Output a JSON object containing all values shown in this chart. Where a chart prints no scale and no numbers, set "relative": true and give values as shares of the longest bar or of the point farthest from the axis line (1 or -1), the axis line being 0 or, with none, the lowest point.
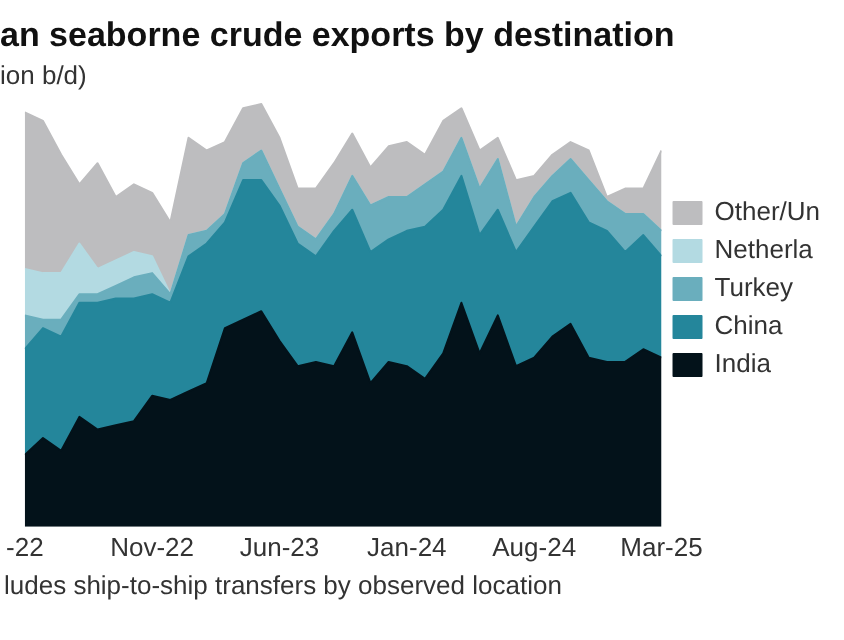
{
  "chart_data": {
    "type": "area",
    "stacked": true,
    "relative": true,
    "legend": "right",
    "title": "an seaborne crude exports by destination",
    "subtitle": "ion b/d)",
    "x": [
      "2022-04",
      "2022-05",
      "2022-06",
      "2022-07",
      "2022-08",
      "2022-09",
      "2022-10",
      "2022-11",
      "2022-12",
      "2023-01",
      "2023-02",
      "2023-03",
      "2023-04",
      "2023-05",
      "2023-06",
      "2023-07",
      "2023-08",
      "2023-09",
      "2023-10",
      "2023-11",
      "2023-12",
      "2024-01",
      "2024-02",
      "2024-03",
      "2024-04",
      "2024-05",
      "2024-06",
      "2024-07",
      "2024-08",
      "2024-09",
      "2024-10",
      "2024-11",
      "2024-12",
      "2025-01",
      "2025-02",
      "2025-03"
    ],
    "xlim": [
      "2022-04",
      "2025-03"
    ],
    "xticks": [
      {
        "value": "2022-04",
        "label": "-22"
      },
      {
        "value": "2022-11",
        "label": "Nov-22"
      },
      {
        "value": "2023-06",
        "label": "Jun-23"
      },
      {
        "value": "2024-01",
        "label": "Jan-24"
      },
      {
        "value": "2024-08",
        "label": "Aug-24"
      },
      {
        "value": "2025-03",
        "label": "Mar-25"
      }
    ],
    "series": [
      {
        "name": "India",
        "color": "#03121a",
        "values": [
          0.17,
          0.21,
          0.18,
          0.26,
          0.23,
          0.24,
          0.25,
          0.31,
          0.3,
          0.32,
          0.34,
          0.47,
          0.49,
          0.51,
          0.44,
          0.38,
          0.39,
          0.38,
          0.46,
          0.34,
          0.39,
          0.38,
          0.35,
          0.41,
          0.53,
          0.41,
          0.5,
          0.38,
          0.4,
          0.45,
          0.48,
          0.4,
          0.39,
          0.39,
          0.42,
          0.4
        ]
      },
      {
        "name": "China",
        "color": "#24869b",
        "values": [
          0.25,
          0.26,
          0.27,
          0.27,
          0.3,
          0.3,
          0.29,
          0.24,
          0.23,
          0.32,
          0.33,
          0.25,
          0.33,
          0.31,
          0.32,
          0.29,
          0.25,
          0.32,
          0.29,
          0.31,
          0.29,
          0.32,
          0.36,
          0.34,
          0.3,
          0.28,
          0.25,
          0.27,
          0.31,
          0.32,
          0.31,
          0.32,
          0.31,
          0.26,
          0.27,
          0.24
        ]
      },
      {
        "name": "Turkey",
        "color": "#6aaebd",
        "values": [
          0.08,
          0.02,
          0.04,
          0.02,
          0.02,
          0.03,
          0.05,
          0.05,
          0.02,
          0.05,
          0.03,
          0.02,
          0.04,
          0.07,
          0.04,
          0.04,
          0.04,
          0.04,
          0.08,
          0.11,
          0.1,
          0.08,
          0.1,
          0.09,
          0.09,
          0.11,
          0.12,
          0.06,
          0.07,
          0.06,
          0.08,
          0.1,
          0.07,
          0.09,
          0.05,
          0.06
        ]
      },
      {
        "name": "Netherla",
        "color": "#b3dae2",
        "values": [
          0.11,
          0.11,
          0.11,
          0.12,
          0.06,
          0.06,
          0.06,
          0.04,
          0,
          0,
          0,
          0,
          0,
          0,
          0,
          0,
          0,
          0,
          0,
          0,
          0,
          0,
          0,
          0,
          0,
          0,
          0,
          0,
          0,
          0,
          0,
          0,
          0,
          0,
          0,
          0
        ]
      },
      {
        "name": "Other/Un",
        "color": "#bdbdbf",
        "values": [
          0.37,
          0.36,
          0.28,
          0.14,
          0.25,
          0.15,
          0.16,
          0.15,
          0.17,
          0.23,
          0.19,
          0.17,
          0.13,
          0.11,
          0.12,
          0.09,
          0.12,
          0.12,
          0.1,
          0.09,
          0.12,
          0.13,
          0.07,
          0.12,
          0.07,
          0.09,
          0.05,
          0.11,
          0.05,
          0.05,
          0.04,
          0.07,
          0.01,
          0.06,
          0.06,
          0.19
        ]
      }
    ],
    "annotations": [
      "ludes ship-to-ship transfers by observed location"
    ]
  }
}
